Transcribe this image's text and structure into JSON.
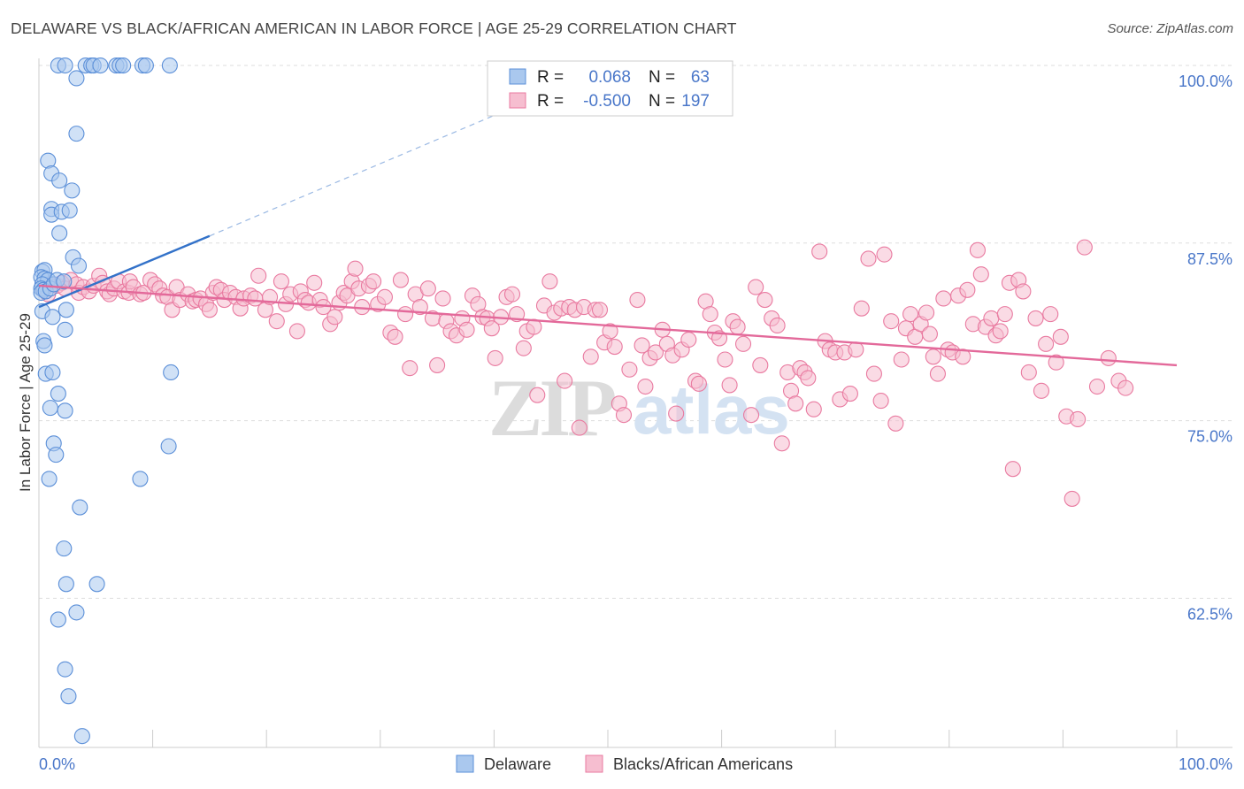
{
  "title": "DELAWARE VS BLACK/AFRICAN AMERICAN IN LABOR FORCE | AGE 25-29 CORRELATION CHART",
  "source": "Source: ZipAtlas.com",
  "watermark": {
    "zip": "ZIP",
    "atlas": "atlas"
  },
  "colors": {
    "blue_fill": "#aac8ee",
    "blue_stroke": "#5b8fd8",
    "blue_line": "#3372c9",
    "pink_fill": "#f6bed0",
    "pink_stroke": "#e97aa0",
    "pink_line": "#e3699a",
    "axis_text": "#4a77c9",
    "grid": "#dddddd"
  },
  "legend": {
    "rows": [
      {
        "r_label": "R =",
        "r_value": "0.068",
        "n_label": "N =",
        "n_value": "63",
        "color": "blue"
      },
      {
        "r_label": "R =",
        "r_value": "-0.500",
        "n_label": "N =",
        "n_value": "197",
        "color": "pink"
      }
    ]
  },
  "bottom_legend": [
    {
      "label": "Delaware",
      "color": "blue"
    },
    {
      "label": "Blacks/African Americans",
      "color": "pink"
    }
  ],
  "chart_data": {
    "type": "scatter",
    "title": "DELAWARE VS BLACK/AFRICAN AMERICAN IN LABOR FORCE | AGE 25-29 CORRELATION CHART",
    "ylabel": "In Labor Force | Age 25-29",
    "xlabel": "",
    "xlim": [
      0,
      100
    ],
    "ylim": [
      52,
      100.5
    ],
    "x_tick_labels": [
      {
        "value": 0,
        "label": "0.0%"
      },
      {
        "value": 100,
        "label": "100.0%"
      }
    ],
    "y_tick_labels": [
      {
        "value": 100,
        "label": "100.0%"
      },
      {
        "value": 87.5,
        "label": "87.5%"
      },
      {
        "value": 75,
        "label": "75.0%"
      },
      {
        "value": 62.5,
        "label": "62.5%"
      }
    ],
    "grid": true,
    "legend_position": "top-center",
    "series": [
      {
        "name": "Delaware",
        "color": "blue",
        "R": 0.068,
        "N": 63,
        "trend": {
          "x": [
            0,
            15
          ],
          "y": [
            83.0,
            88.0
          ],
          "dashed_extension_to": [
            43,
            97.5
          ]
        },
        "points": [
          [
            1.7,
            100
          ],
          [
            2.3,
            100
          ],
          [
            4.1,
            100
          ],
          [
            4.6,
            100
          ],
          [
            4.8,
            100
          ],
          [
            5.4,
            100
          ],
          [
            6.8,
            100
          ],
          [
            7.1,
            100
          ],
          [
            7.4,
            100
          ],
          [
            9.1,
            100
          ],
          [
            9.4,
            100
          ],
          [
            11.5,
            100
          ],
          [
            3.3,
            99.1
          ],
          [
            3.3,
            95.2
          ],
          [
            0.8,
            93.3
          ],
          [
            1.1,
            92.4
          ],
          [
            1.8,
            91.9
          ],
          [
            2.9,
            91.2
          ],
          [
            1.1,
            89.9
          ],
          [
            1.1,
            89.5
          ],
          [
            2.0,
            89.7
          ],
          [
            2.7,
            89.8
          ],
          [
            1.8,
            88.2
          ],
          [
            3.0,
            86.5
          ],
          [
            3.5,
            85.9
          ],
          [
            0.3,
            85.5
          ],
          [
            0.5,
            85.6
          ],
          [
            0.2,
            85.1
          ],
          [
            0.5,
            85.0
          ],
          [
            0.8,
            84.9
          ],
          [
            0.3,
            84.6
          ],
          [
            0.2,
            84.3
          ],
          [
            0.4,
            84.2
          ],
          [
            0.2,
            84.0
          ],
          [
            0.6,
            84.1
          ],
          [
            1.0,
            84.3
          ],
          [
            1.3,
            84.6
          ],
          [
            1.6,
            84.9
          ],
          [
            2.2,
            84.8
          ],
          [
            0.3,
            82.7
          ],
          [
            2.4,
            82.8
          ],
          [
            1.2,
            82.3
          ],
          [
            2.3,
            81.4
          ],
          [
            0.4,
            80.6
          ],
          [
            0.5,
            80.3
          ],
          [
            0.6,
            78.3
          ],
          [
            1.2,
            78.4
          ],
          [
            11.6,
            78.4
          ],
          [
            1.7,
            76.9
          ],
          [
            1.0,
            75.9
          ],
          [
            2.3,
            75.7
          ],
          [
            1.3,
            73.4
          ],
          [
            11.4,
            73.2
          ],
          [
            1.5,
            72.6
          ],
          [
            0.9,
            70.9
          ],
          [
            8.9,
            70.9
          ],
          [
            3.6,
            68.9
          ],
          [
            2.2,
            66.0
          ],
          [
            2.4,
            63.5
          ],
          [
            5.1,
            63.5
          ],
          [
            3.3,
            61.5
          ],
          [
            1.7,
            61.0
          ],
          [
            2.3,
            57.5
          ],
          [
            2.6,
            55.6
          ],
          [
            3.8,
            52.8
          ]
        ]
      },
      {
        "name": "Blacks/African Americans",
        "color": "pink",
        "R": -0.5,
        "N": 197,
        "trend": {
          "x": [
            0,
            100
          ],
          "y": [
            84.5,
            78.9
          ]
        },
        "points": [
          [
            0.4,
            84.2
          ],
          [
            0.8,
            83.9
          ],
          [
            1.1,
            84.6
          ],
          [
            1.6,
            84.5
          ],
          [
            2.0,
            84.7
          ],
          [
            2.3,
            84.3
          ],
          [
            2.8,
            84.9
          ],
          [
            3.3,
            84.6
          ],
          [
            3.5,
            84.0
          ],
          [
            3.9,
            84.4
          ],
          [
            4.4,
            84.1
          ],
          [
            4.8,
            84.5
          ],
          [
            5.3,
            85.2
          ],
          [
            5.6,
            84.7
          ],
          [
            6.0,
            84.1
          ],
          [
            6.2,
            83.9
          ],
          [
            6.6,
            84.3
          ],
          [
            7.0,
            84.8
          ],
          [
            7.5,
            84.1
          ],
          [
            7.9,
            84.0
          ],
          [
            8.0,
            84.8
          ],
          [
            8.3,
            84.4
          ],
          [
            8.9,
            83.9
          ],
          [
            9.2,
            84.0
          ],
          [
            9.8,
            84.9
          ],
          [
            10.2,
            84.6
          ],
          [
            10.6,
            84.3
          ],
          [
            10.9,
            83.8
          ],
          [
            11.3,
            83.7
          ],
          [
            11.7,
            82.8
          ],
          [
            12.1,
            84.4
          ],
          [
            12.4,
            83.5
          ],
          [
            13.1,
            83.9
          ],
          [
            13.5,
            83.4
          ],
          [
            13.8,
            83.5
          ],
          [
            14.2,
            83.6
          ],
          [
            14.7,
            83.2
          ],
          [
            15.0,
            82.8
          ],
          [
            15.3,
            84.0
          ],
          [
            15.6,
            84.4
          ],
          [
            16.0,
            84.2
          ],
          [
            16.3,
            83.5
          ],
          [
            16.8,
            84.0
          ],
          [
            17.3,
            83.7
          ],
          [
            17.7,
            82.9
          ],
          [
            18.0,
            83.6
          ],
          [
            18.6,
            83.8
          ],
          [
            19.0,
            83.6
          ],
          [
            19.3,
            85.2
          ],
          [
            19.9,
            82.8
          ],
          [
            20.3,
            83.7
          ],
          [
            20.9,
            82.0
          ],
          [
            21.3,
            84.8
          ],
          [
            21.7,
            83.2
          ],
          [
            22.1,
            83.9
          ],
          [
            22.7,
            81.3
          ],
          [
            23.0,
            84.1
          ],
          [
            23.4,
            83.5
          ],
          [
            23.7,
            83.3
          ],
          [
            24.2,
            84.7
          ],
          [
            24.7,
            83.5
          ],
          [
            25.0,
            83.0
          ],
          [
            25.6,
            81.8
          ],
          [
            26.0,
            82.3
          ],
          [
            26.4,
            83.3
          ],
          [
            26.8,
            84.0
          ],
          [
            27.1,
            83.8
          ],
          [
            27.5,
            84.8
          ],
          [
            27.8,
            85.7
          ],
          [
            28.1,
            84.3
          ],
          [
            28.4,
            83.0
          ],
          [
            29.0,
            84.5
          ],
          [
            29.4,
            84.8
          ],
          [
            29.8,
            83.2
          ],
          [
            30.4,
            83.7
          ],
          [
            30.9,
            81.2
          ],
          [
            31.3,
            80.9
          ],
          [
            31.8,
            84.9
          ],
          [
            32.2,
            82.5
          ],
          [
            32.6,
            78.7
          ],
          [
            33.1,
            83.9
          ],
          [
            33.5,
            83.0
          ],
          [
            34.2,
            84.3
          ],
          [
            34.6,
            82.2
          ],
          [
            35.0,
            78.9
          ],
          [
            35.5,
            83.6
          ],
          [
            35.8,
            82.0
          ],
          [
            36.2,
            81.3
          ],
          [
            36.7,
            81.0
          ],
          [
            37.2,
            82.2
          ],
          [
            37.6,
            81.4
          ],
          [
            38.1,
            83.8
          ],
          [
            38.6,
            83.2
          ],
          [
            39.0,
            82.3
          ],
          [
            39.4,
            82.2
          ],
          [
            39.8,
            81.5
          ],
          [
            40.1,
            79.4
          ],
          [
            40.6,
            82.3
          ],
          [
            41.1,
            83.7
          ],
          [
            41.6,
            83.9
          ],
          [
            42.0,
            82.5
          ],
          [
            42.6,
            80.1
          ],
          [
            42.9,
            81.3
          ],
          [
            43.5,
            81.6
          ],
          [
            43.8,
            76.8
          ],
          [
            44.4,
            83.1
          ],
          [
            44.9,
            84.8
          ],
          [
            45.3,
            82.6
          ],
          [
            45.9,
            82.9
          ],
          [
            46.2,
            77.8
          ],
          [
            46.6,
            83.0
          ],
          [
            47.1,
            82.8
          ],
          [
            47.5,
            74.5
          ],
          [
            47.9,
            83.0
          ],
          [
            48.5,
            79.5
          ],
          [
            48.9,
            82.8
          ],
          [
            49.3,
            82.8
          ],
          [
            49.7,
            80.5
          ],
          [
            50.2,
            81.3
          ],
          [
            50.6,
            80.2
          ],
          [
            51.0,
            76.2
          ],
          [
            51.4,
            75.4
          ],
          [
            51.9,
            78.6
          ],
          [
            52.6,
            83.5
          ],
          [
            53.0,
            80.3
          ],
          [
            53.3,
            77.4
          ],
          [
            53.7,
            79.4
          ],
          [
            54.2,
            79.8
          ],
          [
            54.8,
            81.4
          ],
          [
            55.2,
            80.4
          ],
          [
            55.7,
            79.6
          ],
          [
            56.0,
            75.5
          ],
          [
            56.5,
            80.0
          ],
          [
            57.1,
            80.7
          ],
          [
            57.7,
            77.8
          ],
          [
            58.0,
            77.6
          ],
          [
            58.6,
            83.4
          ],
          [
            59.0,
            82.5
          ],
          [
            59.4,
            81.2
          ],
          [
            59.8,
            80.8
          ],
          [
            60.3,
            79.3
          ],
          [
            60.7,
            77.5
          ],
          [
            61.0,
            82.0
          ],
          [
            61.4,
            81.6
          ],
          [
            61.9,
            80.4
          ],
          [
            62.6,
            75.4
          ],
          [
            63.0,
            84.4
          ],
          [
            63.4,
            78.9
          ],
          [
            63.8,
            83.5
          ],
          [
            64.4,
            82.2
          ],
          [
            64.9,
            81.7
          ],
          [
            65.3,
            73.4
          ],
          [
            65.8,
            78.4
          ],
          [
            66.1,
            77.1
          ],
          [
            66.5,
            76.2
          ],
          [
            66.9,
            78.7
          ],
          [
            67.3,
            78.4
          ],
          [
            67.6,
            78.0
          ],
          [
            68.1,
            75.8
          ],
          [
            68.6,
            86.9
          ],
          [
            69.1,
            80.6
          ],
          [
            69.5,
            80.0
          ],
          [
            70.0,
            79.8
          ],
          [
            70.4,
            76.5
          ],
          [
            70.8,
            79.8
          ],
          [
            71.3,
            76.9
          ],
          [
            71.8,
            80.0
          ],
          [
            72.3,
            82.9
          ],
          [
            72.9,
            86.4
          ],
          [
            73.4,
            78.3
          ],
          [
            74.0,
            76.4
          ],
          [
            74.3,
            86.7
          ],
          [
            74.9,
            82.0
          ],
          [
            75.3,
            74.8
          ],
          [
            75.8,
            79.3
          ],
          [
            76.2,
            81.5
          ],
          [
            76.6,
            82.5
          ],
          [
            77.0,
            80.9
          ],
          [
            77.5,
            81.8
          ],
          [
            78.0,
            82.6
          ],
          [
            78.3,
            81.1
          ],
          [
            78.6,
            79.5
          ],
          [
            79.0,
            78.3
          ],
          [
            79.5,
            83.6
          ],
          [
            79.9,
            80.0
          ],
          [
            80.3,
            79.8
          ],
          [
            80.8,
            83.8
          ],
          [
            81.2,
            79.5
          ],
          [
            81.6,
            84.2
          ],
          [
            82.1,
            81.8
          ],
          [
            82.5,
            87.0
          ],
          [
            82.8,
            85.3
          ],
          [
            83.2,
            81.6
          ],
          [
            83.7,
            82.2
          ],
          [
            84.1,
            81.0
          ],
          [
            84.5,
            81.3
          ],
          [
            84.9,
            82.5
          ],
          [
            85.3,
            84.7
          ],
          [
            85.6,
            71.6
          ],
          [
            86.1,
            84.9
          ],
          [
            86.5,
            84.1
          ],
          [
            87.0,
            78.4
          ],
          [
            87.6,
            82.2
          ],
          [
            88.1,
            77.1
          ],
          [
            88.5,
            80.4
          ],
          [
            88.9,
            82.5
          ],
          [
            89.4,
            79.1
          ],
          [
            89.8,
            80.9
          ],
          [
            90.3,
            75.3
          ],
          [
            90.8,
            69.5
          ],
          [
            91.3,
            75.1
          ],
          [
            91.9,
            87.2
          ],
          [
            93.0,
            77.4
          ],
          [
            94.0,
            79.4
          ],
          [
            94.9,
            77.8
          ],
          [
            95.5,
            77.3
          ]
        ]
      }
    ]
  }
}
